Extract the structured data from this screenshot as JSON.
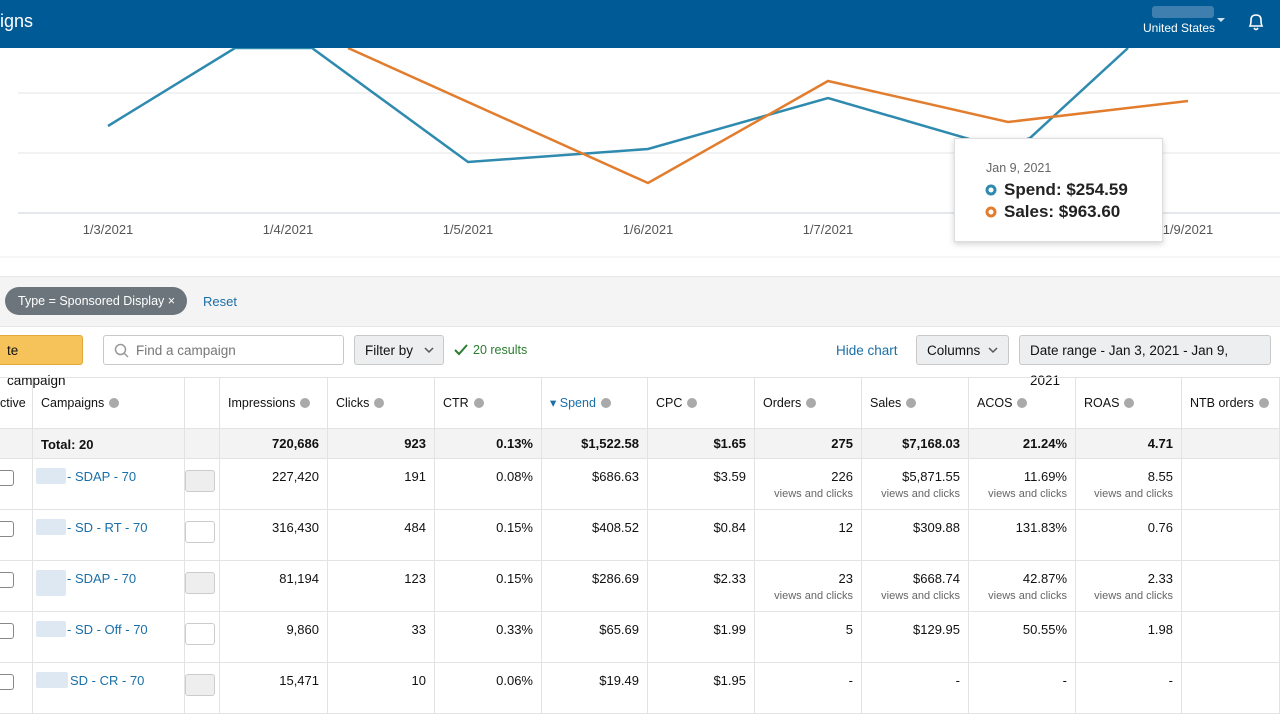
{
  "header": {
    "title": "igns",
    "marketplace": "United States"
  },
  "chart": {
    "x_labels": [
      "1/3/2021",
      "1/4/2021",
      "1/5/2021",
      "1/6/2021",
      "1/7/2021",
      "1/9/2021"
    ],
    "tooltip": {
      "date": "Jan 9, 2021",
      "spend": "Spend: $254.59",
      "sales": "Sales: $963.60"
    }
  },
  "filters": {
    "chip": "Type = Sponsored Display",
    "reset": "Reset"
  },
  "toolbar": {
    "create": "te campaign",
    "search_placeholder": "Find a campaign",
    "filter_by": "Filter by",
    "results": "20 results",
    "hide_chart": "Hide chart",
    "columns": "Columns",
    "date_range": "Date range - Jan 3, 2021 - Jan 9, 2021"
  },
  "table": {
    "columns": [
      "ctive",
      "Campaigns",
      "Impressions",
      "Clicks",
      "CTR",
      "Spend",
      "CPC",
      "Orders",
      "Sales",
      "ACOS",
      "ROAS",
      "NTB orders"
    ],
    "total": {
      "label": "Total: 20",
      "cells": [
        "720,686",
        "923",
        "0.13%",
        "$1,522.58",
        "$1.65",
        "275",
        "$7,168.03",
        "21.24%",
        "4.71"
      ]
    },
    "rows": [
      {
        "name": "- SDAP - 70",
        "cells": [
          {
            "text": "227,420"
          },
          {
            "text": "191"
          },
          {
            "text": "0.08%"
          },
          {
            "text": "$686.63"
          },
          {
            "text": "$3.59"
          },
          {
            "text": "226",
            "note": "views and clicks"
          },
          {
            "text": "$5,871.55",
            "note": "views and clicks"
          },
          {
            "text": "11.69%",
            "note": "views and clicks"
          },
          {
            "text": "8.55",
            "note": "views and clicks"
          }
        ]
      },
      {
        "name": "- SD - RT - 70",
        "cells": [
          {
            "text": "316,430"
          },
          {
            "text": "484"
          },
          {
            "text": "0.15%"
          },
          {
            "text": "$408.52"
          },
          {
            "text": "$0.84"
          },
          {
            "text": "12"
          },
          {
            "text": "$309.88"
          },
          {
            "text": "131.83%"
          },
          {
            "text": "0.76"
          }
        ]
      },
      {
        "name": "- SDAP - 70",
        "cells": [
          {
            "text": "81,194"
          },
          {
            "text": "123"
          },
          {
            "text": "0.15%"
          },
          {
            "text": "$286.69"
          },
          {
            "text": "$2.33"
          },
          {
            "text": "23",
            "note": "views and clicks"
          },
          {
            "text": "$668.74",
            "note": "views and clicks"
          },
          {
            "text": "42.87%",
            "note": "views and clicks"
          },
          {
            "text": "2.33",
            "note": "views and clicks"
          }
        ]
      },
      {
        "name": "- SD - Off - 70",
        "cells": [
          {
            "text": "9,860"
          },
          {
            "text": "33"
          },
          {
            "text": "0.33%"
          },
          {
            "text": "$65.69"
          },
          {
            "text": "$1.99"
          },
          {
            "text": "5"
          },
          {
            "text": "$129.95"
          },
          {
            "text": "50.55%"
          },
          {
            "text": "1.98"
          }
        ]
      },
      {
        "name": "SD - CR - 70",
        "cells": [
          {
            "text": "15,471"
          },
          {
            "text": "10"
          },
          {
            "text": "0.06%"
          },
          {
            "text": "$19.49"
          },
          {
            "text": "$1.95"
          },
          {
            "text": "-"
          },
          {
            "text": "-"
          },
          {
            "text": "-"
          },
          {
            "text": "-"
          }
        ]
      }
    ]
  }
}
